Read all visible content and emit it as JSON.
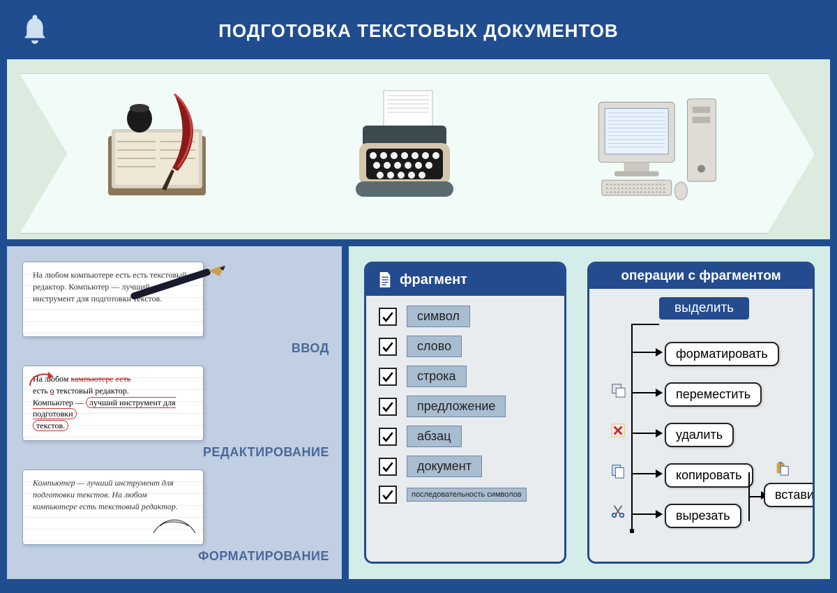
{
  "colors": {
    "page_bg": "#1f4d8f",
    "arrow_panel_bg": "#dcebdf",
    "arrow_fill": "#f1fbf7",
    "arrow_border": "#a9c5e6",
    "left_panel_bg": "#c0cfe1",
    "right_panel_bg": "#d4ede9",
    "header_blue": "#234b8d",
    "chip_bg": "#a9bdd0",
    "label_text": "#4a679c"
  },
  "title": "ПОДГОТОВКА ТЕКСТОВЫХ ДОКУМЕНТОВ",
  "evolution_stages": [
    "quill-and-book",
    "typewriter",
    "desktop-computer"
  ],
  "notes": {
    "input": {
      "label": "ВВОД",
      "text": "На любом компьютере есть есть текстовый редактор. Компьютер — лучший инструмент для подготовки текстов."
    },
    "editing": {
      "label": "РЕДАКТИРОВАНИЕ",
      "text_marked": true
    },
    "formatting": {
      "label": "ФОРМАТИРОВАНИЕ",
      "text": "Компьютер — лучший инструмент для подготовки текстов. На любом компьютере есть текстовый редактор."
    }
  },
  "fragment": {
    "header": "фрагмент",
    "items": [
      {
        "checked": true,
        "label": "символ"
      },
      {
        "checked": true,
        "label": "слово"
      },
      {
        "checked": true,
        "label": "строка"
      },
      {
        "checked": true,
        "label": "предложение"
      },
      {
        "checked": true,
        "label": "абзац"
      },
      {
        "checked": true,
        "label": "документ"
      },
      {
        "checked": true,
        "label": "последовательность символов",
        "small": true
      }
    ]
  },
  "operations": {
    "header": "операции с фрагментом",
    "root": "выделить",
    "items": [
      {
        "label": "форматировать",
        "icon": null
      },
      {
        "label": "переместить",
        "icon": "move"
      },
      {
        "label": "удалить",
        "icon": "delete"
      },
      {
        "label": "копировать",
        "icon": "copy"
      },
      {
        "label": "вырезать",
        "icon": "cut"
      }
    ],
    "paste": "вставить"
  }
}
